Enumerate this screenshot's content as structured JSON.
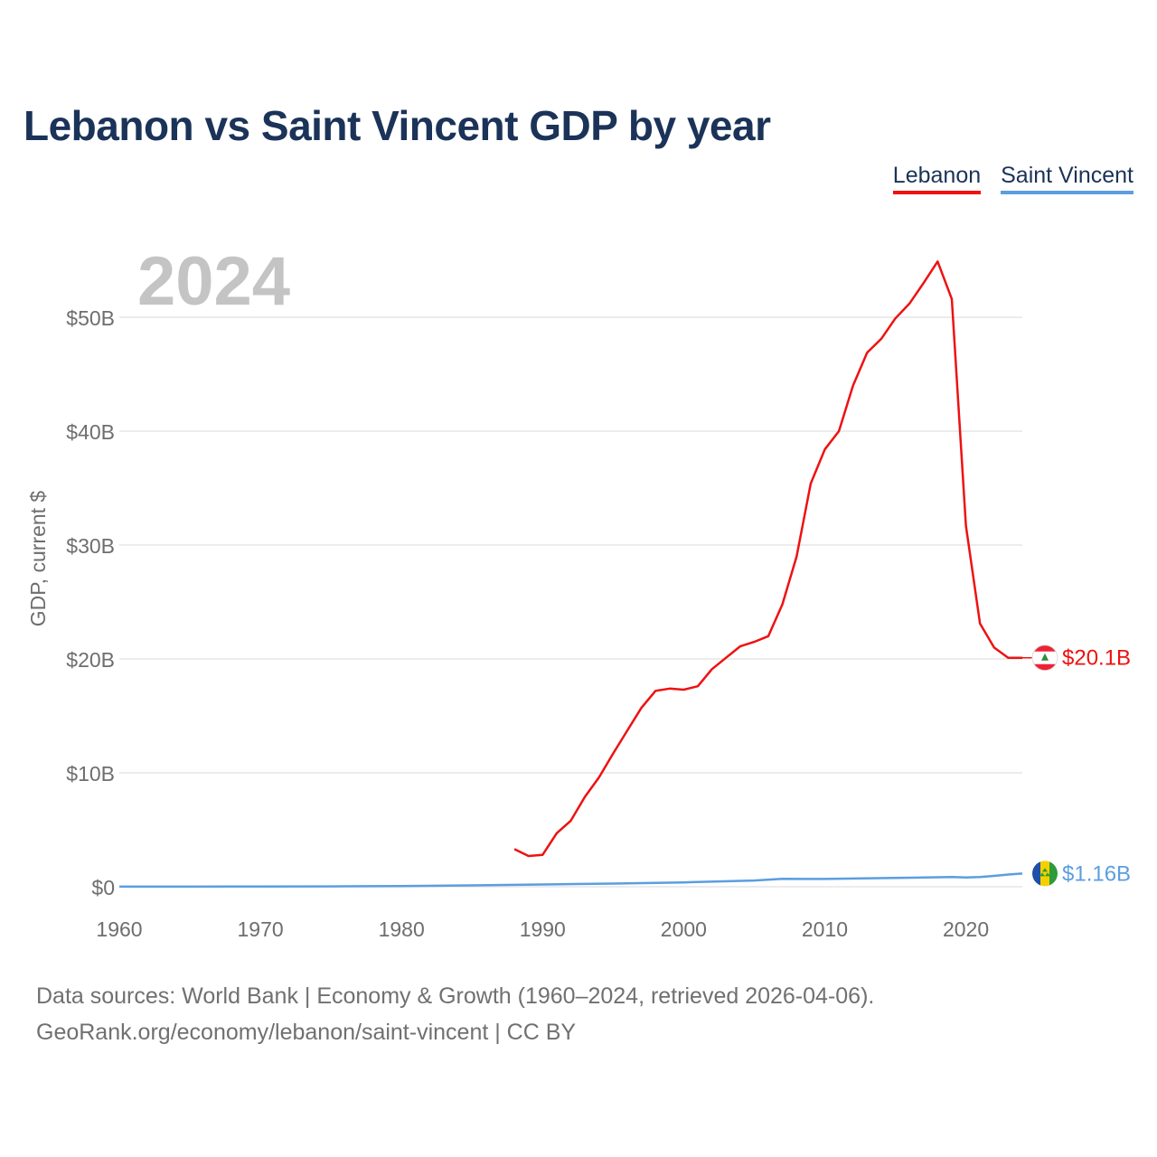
{
  "title": "Lebanon vs Saint Vincent GDP by year",
  "year_watermark": "2024",
  "legend": [
    {
      "name": "Lebanon",
      "color": "#ee1111"
    },
    {
      "name": "Saint Vincent",
      "color": "#5b9ee0"
    }
  ],
  "footer": {
    "line1": "Data sources: World Bank | Economy & Growth (1960–2024, retrieved 2026-04-06).",
    "line2": "GeoRank.org/economy/lebanon/saint-vincent | CC BY"
  },
  "chart_data": {
    "type": "line",
    "title": "Lebanon vs Saint Vincent GDP by year",
    "xlabel": "",
    "ylabel": "GDP, current $",
    "xlim": [
      1960,
      2024
    ],
    "ylim": [
      0,
      55
    ],
    "y_unit": "billions of current US$",
    "x_ticks": [
      1960,
      1970,
      1980,
      1990,
      2000,
      2010,
      2020
    ],
    "x_tick_labels": [
      "1960",
      "1970",
      "1980",
      "1990",
      "2000",
      "2010",
      "2020"
    ],
    "y_ticks": [
      0,
      10,
      20,
      30,
      40,
      50
    ],
    "y_tick_labels": [
      "$0",
      "$10B",
      "$20B",
      "$30B",
      "$40B",
      "$50B"
    ],
    "grid": true,
    "legend_position": "top-right",
    "series": [
      {
        "name": "Lebanon",
        "color": "#ee1111",
        "end_label": "$20.1B",
        "x": [
          1988,
          1989,
          1990,
          1991,
          1992,
          1993,
          1994,
          1995,
          1996,
          1997,
          1998,
          1999,
          2000,
          2001,
          2002,
          2003,
          2004,
          2005,
          2006,
          2007,
          2008,
          2009,
          2010,
          2011,
          2012,
          2013,
          2014,
          2015,
          2016,
          2017,
          2018,
          2019,
          2020,
          2021,
          2022,
          2023,
          2024
        ],
        "values": [
          3.3,
          2.7,
          2.8,
          4.7,
          5.8,
          7.9,
          9.6,
          11.7,
          13.7,
          15.7,
          17.2,
          17.4,
          17.3,
          17.6,
          19.1,
          20.1,
          21.1,
          21.5,
          22.0,
          24.8,
          29.0,
          35.4,
          38.4,
          40.0,
          44.0,
          46.9,
          48.1,
          49.9,
          51.2,
          53.0,
          54.9,
          51.6,
          31.7,
          23.1,
          21.0,
          20.1,
          20.1
        ]
      },
      {
        "name": "Saint Vincent",
        "color": "#5b9ee0",
        "end_label": "$1.16B",
        "x": [
          1960,
          1965,
          1970,
          1975,
          1980,
          1985,
          1990,
          1995,
          2000,
          2005,
          2007,
          2010,
          2015,
          2019,
          2020,
          2021,
          2022,
          2023,
          2024
        ],
        "values": [
          0.01,
          0.01,
          0.02,
          0.03,
          0.06,
          0.12,
          0.2,
          0.28,
          0.38,
          0.55,
          0.69,
          0.68,
          0.77,
          0.86,
          0.81,
          0.85,
          0.95,
          1.07,
          1.16
        ]
      }
    ]
  }
}
